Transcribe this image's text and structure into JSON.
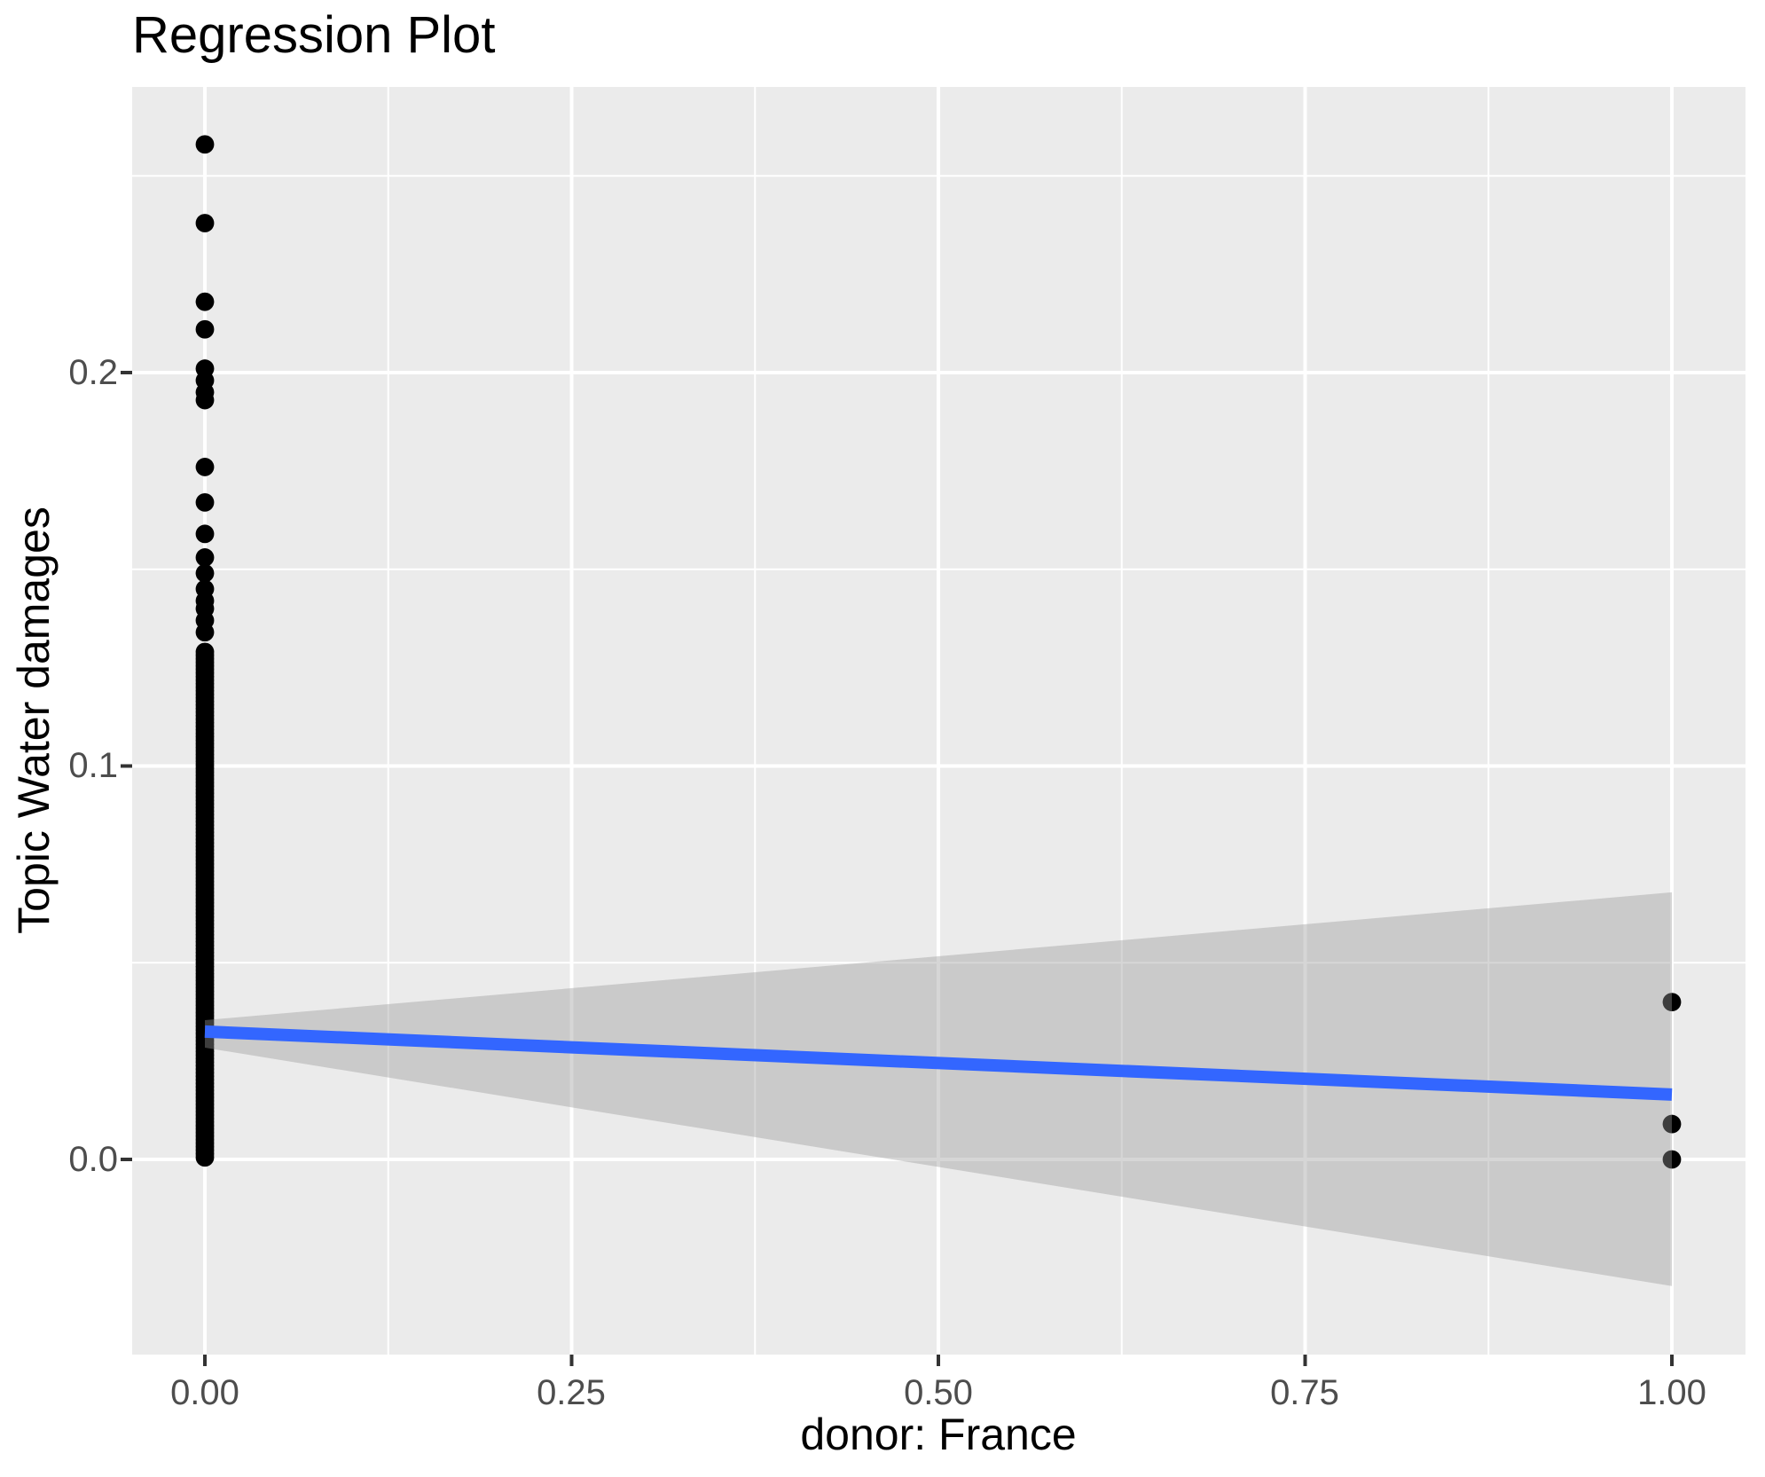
{
  "chart_data": {
    "type": "scatter",
    "title": "Regression Plot",
    "xlabel": "donor: France",
    "ylabel": "Topic Water damages",
    "x_axis": {
      "tick_labels": [
        "0.00",
        "0.25",
        "0.50",
        "0.75",
        "1.00"
      ],
      "tick_values": [
        0,
        0.25,
        0.5,
        0.75,
        1
      ],
      "minor_values": [
        0.125,
        0.375,
        0.625,
        0.875
      ],
      "range": [
        -0.05,
        1.05
      ]
    },
    "y_axis": {
      "tick_labels": [
        "0.0",
        "0.1",
        "0.2"
      ],
      "tick_values": [
        0,
        0.1,
        0.2
      ],
      "minor_values": [
        0.05,
        0.15,
        0.25
      ],
      "range": [
        -0.05,
        0.273
      ]
    },
    "grid": "on",
    "legend": "none",
    "scatter": {
      "x0_outliers": [
        0.258,
        0.238,
        0.218,
        0.211,
        0.201,
        0.198,
        0.195,
        0.193,
        0.176,
        0.167,
        0.159,
        0.153,
        0.149,
        0.145,
        0.142,
        0.14,
        0.137,
        0.134
      ],
      "x0_dense_column": {
        "x": 0,
        "min": 0.0005,
        "max": 0.129,
        "count": 144,
        "note": "visually continuous vertical strip of overlapping points at x=0"
      },
      "x1_points": [
        0.04,
        0.009,
        0.0
      ]
    },
    "regression_line": {
      "y_at_x0": 0.0325,
      "y_at_x1": 0.0165,
      "color": "#3366FF"
    },
    "confidence_band": {
      "y_at_x0": [
        0.0284,
        0.0354
      ],
      "y_at_x1": [
        -0.0322,
        0.0679
      ],
      "color": "rgba(153,153,153,0.4)"
    },
    "theme": {
      "panel_bg": "#EBEBEB",
      "gridline": "#FFFFFF",
      "point_color": "#000000",
      "tick_color": "#333333",
      "tick_label_color": "#4D4D4D",
      "title_color": "#000000"
    }
  }
}
